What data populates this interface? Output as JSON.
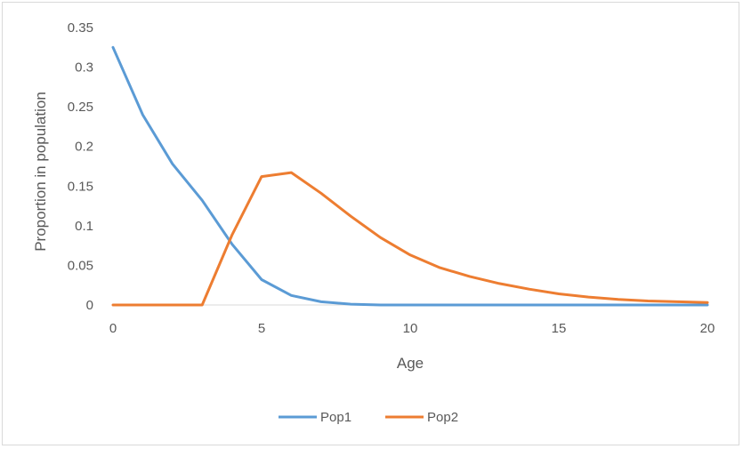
{
  "chart_data": {
    "type": "line",
    "title": "",
    "xlabel": "Age",
    "ylabel": "Proportion in population",
    "xlim": [
      0,
      20
    ],
    "ylim": [
      0,
      0.35
    ],
    "x_ticks": [
      "0",
      "5",
      "10",
      "15",
      "20"
    ],
    "y_ticks": [
      "0",
      "0.05",
      "0.1",
      "0.15",
      "0.2",
      "0.25",
      "0.3",
      "0.35"
    ],
    "grid": false,
    "legend_position": "bottom",
    "series": [
      {
        "name": "Pop1",
        "color": "#5b9bd5",
        "x": [
          0,
          1,
          2,
          3,
          4,
          5,
          6,
          7,
          8,
          9,
          10,
          11,
          12,
          13,
          14,
          15,
          16,
          17,
          18,
          19,
          20
        ],
        "values": [
          0.325,
          0.24,
          0.178,
          0.132,
          0.077,
          0.032,
          0.012,
          0.004,
          0.001,
          0,
          0,
          0,
          0,
          0,
          0,
          0,
          0,
          0,
          0,
          0,
          0
        ]
      },
      {
        "name": "Pop2",
        "color": "#ed7d31",
        "x": [
          0,
          1,
          2,
          3,
          4,
          5,
          6,
          7,
          8,
          9,
          10,
          11,
          12,
          13,
          14,
          15,
          16,
          17,
          18,
          19,
          20
        ],
        "values": [
          0,
          0,
          0,
          0,
          0.088,
          0.162,
          0.167,
          0.141,
          0.112,
          0.085,
          0.063,
          0.047,
          0.036,
          0.027,
          0.02,
          0.014,
          0.01,
          0.007,
          0.005,
          0.004,
          0.003
        ]
      }
    ]
  }
}
